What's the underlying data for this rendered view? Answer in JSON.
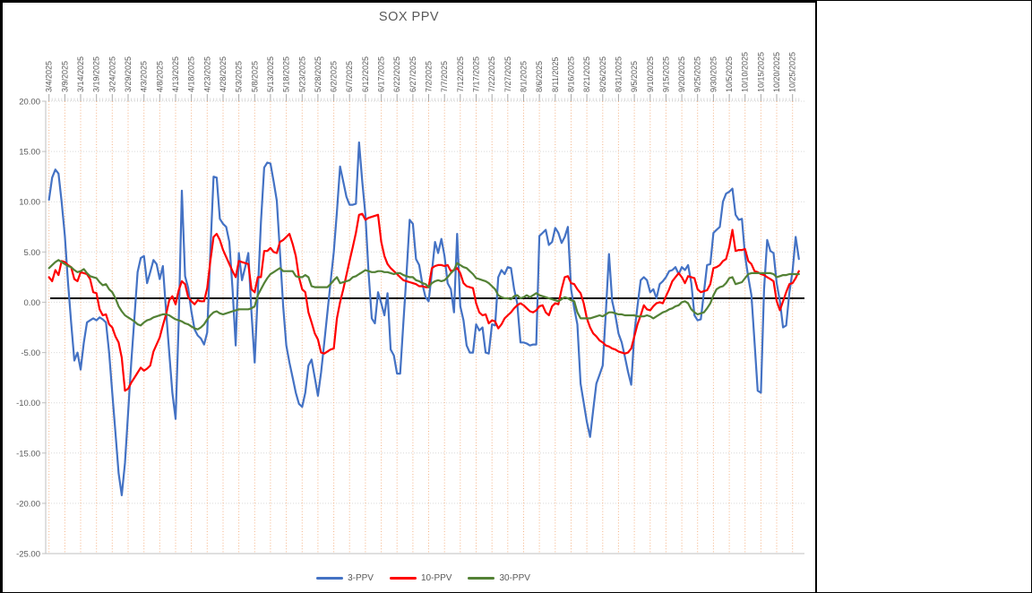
{
  "chart_data": {
    "type": "line",
    "title": "SOX PPV",
    "x_start_date": "3/4/2025",
    "x_end_date": "10/27/2025",
    "x_labels_position": "top",
    "legend_position": "bottom",
    "grid": true,
    "ylim": [
      -25,
      20
    ],
    "y_ticks": [
      20,
      15,
      10,
      5,
      0,
      -5,
      -10,
      -15,
      -20,
      -25
    ],
    "y_tick_labels": [
      "20.00",
      "15.00",
      "10.00",
      "5.00",
      "0.00",
      "-5.00",
      "-10.00",
      "-15.00",
      "-20.00",
      "-25.00"
    ],
    "x_tick_interval_days": 5,
    "x_tick_labels": [
      "3/4/2025",
      "3/9/2025",
      "3/14/2025",
      "3/19/2025",
      "3/24/2025",
      "3/29/2025",
      "4/3/2025",
      "4/8/2025",
      "4/13/2025",
      "4/18/2025",
      "4/23/2025",
      "4/28/2025",
      "5/3/2025",
      "5/8/2025",
      "5/13/2025",
      "5/18/2025",
      "5/23/2025",
      "5/28/2025",
      "6/2/2025",
      "6/7/2025",
      "6/12/2025",
      "6/17/2025",
      "6/22/2025",
      "6/27/2025",
      "7/2/2025",
      "7/7/2025",
      "7/12/2025",
      "7/17/2025",
      "7/22/2025",
      "7/27/2025",
      "8/1/2025",
      "8/6/2025",
      "8/11/2025",
      "8/16/2025",
      "8/21/2025",
      "8/26/2025",
      "8/31/2025",
      "9/5/2025",
      "9/10/2025",
      "9/15/2025",
      "9/20/2025",
      "9/25/2025",
      "9/30/2025",
      "10/5/2025",
      "10/10/2025",
      "10/15/2025",
      "10/20/2025",
      "10/25/2025"
    ],
    "reference_line": {
      "value": 0.4,
      "color": "#000000"
    },
    "colors": {
      "h_grid": "#d9d9d9",
      "v_grid": "#f4b183",
      "axis": "#bfbfbf",
      "text": "#595959"
    },
    "series": [
      {
        "name": "3-PPV",
        "color": "#4472C4",
        "values": [
          10.2,
          12.4,
          13.2,
          12.8,
          10,
          6.6,
          2,
          -2,
          -5.8,
          -5,
          -6.7,
          -4,
          -2,
          -1.8,
          -1.6,
          -1.8,
          -1.5,
          -1.7,
          -2,
          -5,
          -9,
          -13,
          -17,
          -19.2,
          -16,
          -11,
          -6,
          -1.5,
          3,
          4.4,
          4.6,
          1.9,
          3,
          4.2,
          3.8,
          2.3,
          3.6,
          -0.9,
          -5,
          -9,
          -11.6,
          -2,
          11.1,
          2.6,
          1.4,
          -0.9,
          -2.7,
          -3.3,
          -3.6,
          -4.2,
          -3,
          5,
          12.5,
          12.4,
          8.3,
          7.8,
          7.5,
          6,
          1.3,
          -4.3,
          4.9,
          2.2,
          3.5,
          4.9,
          -1,
          -6,
          1,
          8,
          13.4,
          13.9,
          13.8,
          12,
          10.1,
          5,
          -0.4,
          -4.3,
          -6,
          -7.5,
          -9,
          -10.1,
          -10.4,
          -9,
          -6.3,
          -5.7,
          -7.5,
          -9.3,
          -7,
          -4,
          -1,
          2,
          5,
          9,
          13.5,
          12,
          10.5,
          9.7,
          9.7,
          9.8,
          15.9,
          12,
          8.7,
          3,
          -1.6,
          -2.1,
          1,
          -0.1,
          -1.3,
          0.9,
          -4.7,
          -5.3,
          -7.1,
          -7.1,
          -2,
          2.8,
          8.2,
          7.8,
          4.3,
          3.7,
          1.8,
          0.5,
          0.1,
          3,
          6,
          4.9,
          6.3,
          4.6,
          1.9,
          1.3,
          -1,
          6.8,
          -0.4,
          -1.8,
          -4.3,
          -5,
          -5,
          -2.2,
          -2.8,
          -2.5,
          -5,
          -5.1,
          -2.2,
          -2.3,
          2.5,
          3.2,
          2.8,
          3.5,
          3.4,
          1.3,
          -0.1,
          -4,
          -4,
          -4.1,
          -4.3,
          -4.2,
          -4.2,
          6.6,
          6.9,
          7.2,
          5.7,
          6,
          7.4,
          6.9,
          5.9,
          6.5,
          7.5,
          1.3,
          -0.6,
          -2.2,
          -8.1,
          -10,
          -11.9,
          -13.4,
          -10.7,
          -8.1,
          -7.2,
          -6.3,
          -1,
          4.8,
          0.1,
          -1.3,
          -3.1,
          -4,
          -5.4,
          -6.9,
          -8.2,
          -3.1,
          -0.4,
          2.2,
          2.5,
          2.2,
          1,
          1.3,
          0.4,
          1.8,
          2.1,
          2.5,
          3.1,
          3.2,
          3.5,
          2.8,
          3.5,
          3.2,
          3.7,
          1.9,
          -1.3,
          -1.8,
          -1.7,
          1,
          3.7,
          3.8,
          6.9,
          7.2,
          7.5,
          10,
          10.8,
          11,
          11.3,
          8.7,
          8.2,
          8.3,
          4.6,
          2.5,
          0.7,
          -4,
          -8.8,
          -9,
          1.3,
          6.2,
          5.1,
          4.9,
          1.9,
          0.1,
          -2.5,
          -2.3,
          1,
          3.1,
          6.5,
          4.3
        ]
      },
      {
        "name": "10-PPV",
        "color": "#FF0000",
        "values": [
          2.5,
          2.1,
          3.2,
          2.7,
          4.1,
          4,
          3.7,
          3.5,
          2.3,
          2.1,
          3,
          2.9,
          2.8,
          2.3,
          1,
          0.9,
          -0.7,
          -1.3,
          -1.2,
          -2.2,
          -2.5,
          -3.4,
          -4,
          -5.5,
          -8.8,
          -8.6,
          -8,
          -7.5,
          -7,
          -6.5,
          -6.8,
          -6.6,
          -6.3,
          -4.9,
          -4.2,
          -3.5,
          -2.3,
          -1.2,
          0.2,
          0.6,
          -0.2,
          1.2,
          2.1,
          1.8,
          0.5,
          0.1,
          -0.2,
          0.2,
          0.1,
          0.1,
          1.4,
          4.1,
          6.5,
          6.8,
          6.2,
          5.2,
          4.5,
          3.8,
          3.1,
          2.5,
          4.1,
          4,
          3.9,
          3.8,
          1.3,
          1,
          2.5,
          2.5,
          5.1,
          5.1,
          5.4,
          5,
          4.9,
          6,
          6.2,
          6.5,
          6.8,
          5.8,
          4.6,
          2.5,
          1.3,
          1,
          -1,
          -2,
          -3.1,
          -3.7,
          -5,
          -5.1,
          -4.9,
          -4.7,
          -4.6,
          -1.6,
          0,
          1.3,
          2.7,
          4.1,
          5.5,
          6.9,
          8.7,
          8.8,
          8.2,
          8.4,
          8.5,
          8.6,
          8.7,
          6,
          4.6,
          3.8,
          3.4,
          3.1,
          2.8,
          2.5,
          2.2,
          2.1,
          2,
          1.9,
          1.8,
          1.6,
          1.6,
          1.5,
          1.5,
          3.4,
          3.6,
          3.7,
          3.7,
          3.6,
          3.7,
          3.1,
          3.2,
          3.4,
          2.9,
          1.9,
          1.6,
          1.5,
          1.4,
          -0.1,
          -1,
          -1.3,
          -1.2,
          -2.1,
          -1.8,
          -1.9,
          -2.6,
          -2.2,
          -1.6,
          -1.3,
          -1,
          -0.6,
          -0.3,
          -0.1,
          -0.3,
          -0.6,
          -0.9,
          -1,
          -0.8,
          -0.4,
          -0.3,
          -1,
          -1.3,
          -0.4,
          -0.1,
          -0.2,
          1.3,
          2.5,
          2.6,
          1.9,
          1.8,
          1.3,
          0.9,
          -0.1,
          -1.6,
          -2.5,
          -3.1,
          -3.4,
          -3.8,
          -4,
          -4.3,
          -4.4,
          -4.6,
          -4.7,
          -4.9,
          -5,
          -5.1,
          -5,
          -4.6,
          -3.4,
          -2.2,
          -1.3,
          -0.3,
          -0.7,
          -0.8,
          -0.4,
          -0.1,
          0,
          -0.1,
          0.6,
          1.3,
          2.1,
          2.5,
          2.9,
          2.5,
          1.9,
          2.6,
          2.5,
          2.4,
          1.3,
          1,
          1.1,
          1.2,
          1.8,
          3.4,
          3.5,
          3.7,
          4.1,
          4.3,
          5.5,
          7.2,
          5.1,
          5.2,
          5.2,
          5.3,
          4.1,
          3.8,
          3.1,
          3,
          2.8,
          2.7,
          2.5,
          2.3,
          2.1,
          0.1,
          -0.8,
          0.1,
          1,
          1.8,
          1.9,
          2.4,
          3.1
        ]
      },
      {
        "name": "30-PPV",
        "color": "#538135",
        "values": [
          3.4,
          3.7,
          4,
          4.2,
          4,
          3.8,
          3.6,
          3.5,
          3.2,
          3,
          3.1,
          3.3,
          2.9,
          2.6,
          2.5,
          2.4,
          2,
          1.7,
          1.8,
          1.3,
          1,
          0.4,
          -0.4,
          -0.9,
          -1.3,
          -1.5,
          -1.7,
          -1.9,
          -2.2,
          -2.3,
          -2,
          -1.8,
          -1.7,
          -1.5,
          -1.4,
          -1.3,
          -1.2,
          -1.2,
          -1.3,
          -1.5,
          -1.7,
          -1.8,
          -1.9,
          -2.1,
          -2.2,
          -2.4,
          -2.6,
          -2.7,
          -2.5,
          -2.2,
          -1.7,
          -1.3,
          -1,
          -0.9,
          -1.1,
          -1.2,
          -1.1,
          -1,
          -0.9,
          -0.8,
          -0.7,
          -0.7,
          -0.7,
          -0.7,
          -0.6,
          -0.4,
          0.7,
          1.3,
          1.9,
          2.4,
          2.8,
          3,
          3.2,
          3.4,
          3.1,
          3.1,
          3.1,
          3.1,
          2.6,
          2.5,
          2.5,
          2.7,
          2.5,
          1.6,
          1.5,
          1.5,
          1.5,
          1.5,
          1.5,
          1.8,
          2.2,
          2.5,
          1.9,
          2,
          2.1,
          2.2,
          2.5,
          2.6,
          2.8,
          3,
          3.2,
          3.1,
          3,
          3,
          3.1,
          3.1,
          3,
          3,
          2.9,
          2.8,
          2.9,
          2.9,
          2.7,
          2.6,
          2.5,
          2.5,
          2.2,
          2.1,
          1.9,
          1.8,
          1.5,
          1.9,
          2.1,
          2.2,
          2.1,
          2.2,
          2.5,
          2.9,
          3.2,
          3.9,
          3.7,
          3.5,
          3.4,
          3.1,
          2.8,
          2.4,
          2.3,
          2.2,
          2.1,
          1.9,
          1.6,
          1.3,
          0.7,
          0.5,
          0.4,
          0.4,
          0.3,
          0.6,
          0.7,
          0.4,
          0.5,
          0.7,
          0.5,
          0.7,
          0.9,
          0.7,
          0.6,
          0.5,
          0.4,
          0.3,
          0.2,
          0.1,
          0.3,
          0.5,
          0.4,
          0.2,
          0.1,
          -1,
          -1.6,
          -1.6,
          -1.6,
          -1.6,
          -1.5,
          -1.4,
          -1.3,
          -1.4,
          -1.2,
          -1,
          -1,
          -1.1,
          -1.2,
          -1.2,
          -1.3,
          -1.3,
          -1.3,
          -1.3,
          -1.4,
          -1.4,
          -1.4,
          -1.3,
          -1.4,
          -1.6,
          -1.4,
          -1.2,
          -1,
          -0.9,
          -0.7,
          -0.6,
          -0.4,
          -0.3,
          0,
          0.1,
          -0.1,
          -0.7,
          -1,
          -1.2,
          -1.1,
          -1,
          -0.6,
          -0.1,
          0.7,
          1.3,
          1.5,
          1.6,
          1.9,
          2.4,
          2.5,
          1.8,
          1.9,
          2,
          2.4,
          2.8,
          2.9,
          2.9,
          2.9,
          2.9,
          2.9,
          2.9,
          2.9,
          2.8,
          2.5,
          2.6,
          2.7,
          2.7,
          2.8,
          2.8,
          2.8,
          2.8
        ]
      }
    ]
  }
}
